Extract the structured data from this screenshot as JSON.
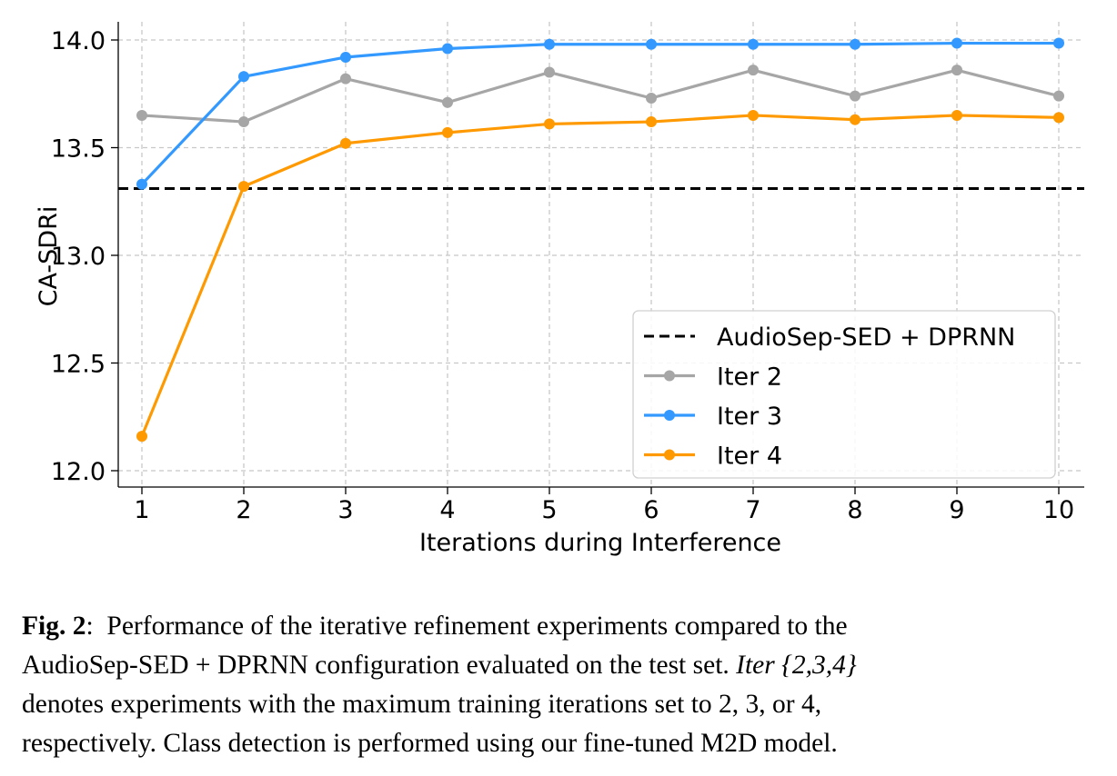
{
  "chart_data": {
    "type": "line",
    "x": [
      1,
      2,
      3,
      4,
      5,
      6,
      7,
      8,
      9,
      10
    ],
    "xlabel": "Iterations during Interference",
    "ylabel": "CA-SDRi",
    "xlim": [
      1,
      10
    ],
    "ylim": [
      12.0,
      14.0
    ],
    "x_ticks": [
      "1",
      "2",
      "3",
      "4",
      "5",
      "6",
      "7",
      "8",
      "9",
      "10"
    ],
    "y_ticks": [
      "12.0",
      "12.5",
      "13.0",
      "13.5",
      "14.0"
    ],
    "grid": true,
    "legend_position": "bottom-right",
    "baseline": {
      "name": "AudioSep-SED + DPRNN",
      "value": 13.31,
      "color": "#000000",
      "style": "dashed"
    },
    "series": [
      {
        "name": "Iter 2",
        "color": "#a6a6a6",
        "values": [
          13.65,
          13.62,
          13.82,
          13.71,
          13.85,
          13.73,
          13.86,
          13.74,
          13.86,
          13.74
        ]
      },
      {
        "name": "Iter 3",
        "color": "#3399ff",
        "values": [
          13.33,
          13.83,
          13.92,
          13.96,
          13.98,
          13.98,
          13.98,
          13.98,
          13.985,
          13.985
        ]
      },
      {
        "name": "Iter 4",
        "color": "#ff9900",
        "values": [
          12.16,
          13.32,
          13.52,
          13.57,
          13.61,
          13.62,
          13.65,
          13.63,
          13.65,
          13.64
        ]
      }
    ]
  },
  "caption": {
    "fig_label": "Fig. 2",
    "line1": "Performance of the iterative refinement experiments compared to the",
    "line2_a": "AudioSep-SED + DPRNN configuration evaluated on the test set.",
    "line2_iter": "Iter",
    "line2_set": "{2,3,4}",
    "line3": "denotes experiments with the maximum training iterations set to 2, 3, or 4,",
    "line4": "respectively. Class detection is performed using our fine-tuned M2D model."
  }
}
